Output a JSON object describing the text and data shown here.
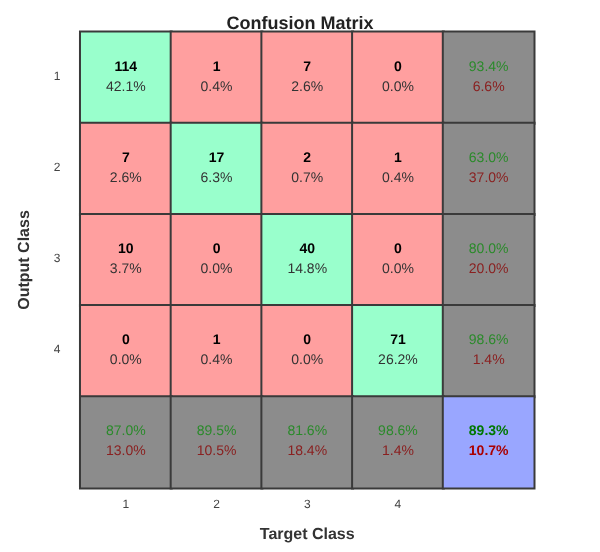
{
  "chart_data": {
    "type": "heatmap",
    "title": "Confusion Matrix",
    "xlabel": "Target Class",
    "ylabel": "Output Class",
    "categories": [
      "1",
      "2",
      "3",
      "4",
      null
    ],
    "y_categories": [
      "1",
      "2",
      "3",
      "4",
      null
    ],
    "cells": [
      [
        114,
        1,
        7,
        0,
        93.4
      ],
      [
        7,
        17,
        2,
        1,
        63.0
      ],
      [
        10,
        0,
        40,
        0,
        80.0
      ],
      [
        0,
        1,
        0,
        71,
        98.6
      ],
      [
        87.0,
        89.5,
        81.6,
        98.6,
        89.3
      ]
    ],
    "data_labels": true,
    "cell_labels": [
      [
        "114",
        "1",
        "7",
        "0",
        "93.4%"
      ],
      [
        "7",
        "17",
        "2",
        "1",
        "63.0%"
      ],
      [
        "10",
        "0",
        "40",
        "0",
        "80.0%"
      ],
      [
        "0",
        "1",
        "0",
        "71",
        "98.6%"
      ],
      [
        "87.0%",
        "89.5%",
        "81.6%",
        "98.6%",
        "89.3%"
      ]
    ],
    "annotations": [
      "42.1%",
      "0.4%",
      "2.6%",
      "0.0%",
      "6.6%",
      "2.6%",
      "6.3%",
      "0.7%",
      "0.4%",
      "37.0%",
      "3.7%",
      "0.0%",
      "14.8%",
      "0.0%",
      "20.0%",
      "0.0%",
      "0.4%",
      "0.0%",
      "26.2%",
      "1.4%",
      "13.0%",
      "10.5%",
      "18.4%",
      "1.4%",
      "10.7%"
    ],
    "colors": [
      [
        "#99ffcc",
        "#ff9f9f",
        "#ff9f9f",
        "#ff9f9f",
        "#8c8c8c"
      ],
      [
        "#ff9f9f",
        "#99ffcc",
        "#ff9f9f",
        "#ff9f9f",
        "#8c8c8c"
      ],
      [
        "#ff9f9f",
        "#ff9f9f",
        "#99ffcc",
        "#ff9f9f",
        "#8c8c8c"
      ],
      [
        "#ff9f9f",
        "#ff9f9f",
        "#ff9f9f",
        "#99ffcc",
        "#8c8c8c"
      ],
      [
        "#8c8c8c",
        "#8c8c8c",
        "#8c8c8c",
        "#8c8c8c",
        "#99a6ff"
      ]
    ]
  }
}
